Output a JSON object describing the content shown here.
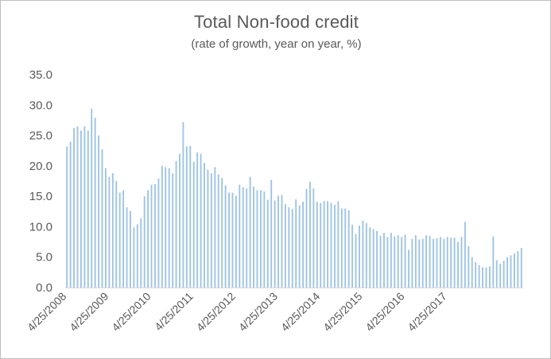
{
  "chart_data": {
    "type": "bar",
    "title": "Total Non-food credit",
    "subtitle": "(rate of growth, year on year, %)",
    "xlabel": "",
    "ylabel": "",
    "ylim": [
      0,
      35
    ],
    "yticks": [
      "0.0",
      "5.0",
      "10.0",
      "15.0",
      "20.0",
      "25.0",
      "30.0",
      "35.0"
    ],
    "xtick_labels": [
      "4/25/2008",
      "4/25/2009",
      "4/25/2010",
      "4/25/2011",
      "4/25/2012",
      "4/25/2013",
      "4/25/2014",
      "4/25/2015",
      "4/25/2016",
      "4/25/2017"
    ],
    "bar_color": "#9dc3e6",
    "grid": false,
    "values": [
      23.2,
      24.0,
      26.2,
      26.5,
      25.8,
      26.5,
      25.8,
      29.4,
      27.9,
      25.0,
      22.7,
      19.6,
      18.2,
      18.8,
      17.5,
      15.6,
      16.0,
      13.2,
      12.6,
      9.9,
      10.4,
      11.4,
      15.0,
      16.0,
      16.9,
      17.0,
      17.9,
      20.0,
      19.8,
      19.6,
      18.8,
      20.8,
      22.0,
      27.2,
      23.2,
      23.3,
      20.7,
      22.2,
      22.0,
      20.5,
      19.4,
      18.8,
      19.8,
      18.6,
      18.0,
      16.8,
      15.6,
      15.6,
      15.1,
      16.9,
      16.5,
      16.3,
      18.2,
      16.6,
      16.0,
      16.0,
      15.8,
      14.4,
      17.7,
      14.3,
      15.1,
      15.2,
      13.7,
      13.2,
      12.9,
      14.5,
      13.5,
      14.1,
      16.2,
      17.4,
      16.3,
      14.1,
      13.9,
      14.2,
      14.2,
      13.9,
      13.6,
      14.2,
      13.0,
      13.0,
      12.7,
      10.3,
      8.8,
      10.2,
      11.0,
      10.6,
      9.9,
      9.6,
      9.3,
      8.5,
      9.0,
      8.3,
      9.0,
      8.4,
      8.6,
      8.3,
      8.7,
      6.2,
      8.0,
      8.6,
      7.9,
      8.0,
      8.6,
      8.5,
      8.0,
      8.1,
      8.3,
      8.0,
      8.3,
      8.2,
      8.2,
      7.5,
      8.3,
      10.8,
      6.8,
      5.0,
      4.2,
      3.7,
      3.3,
      3.3,
      3.5,
      8.4,
      4.5,
      3.9,
      4.4,
      5.0,
      5.3,
      5.6,
      6.0,
      6.5
    ]
  }
}
